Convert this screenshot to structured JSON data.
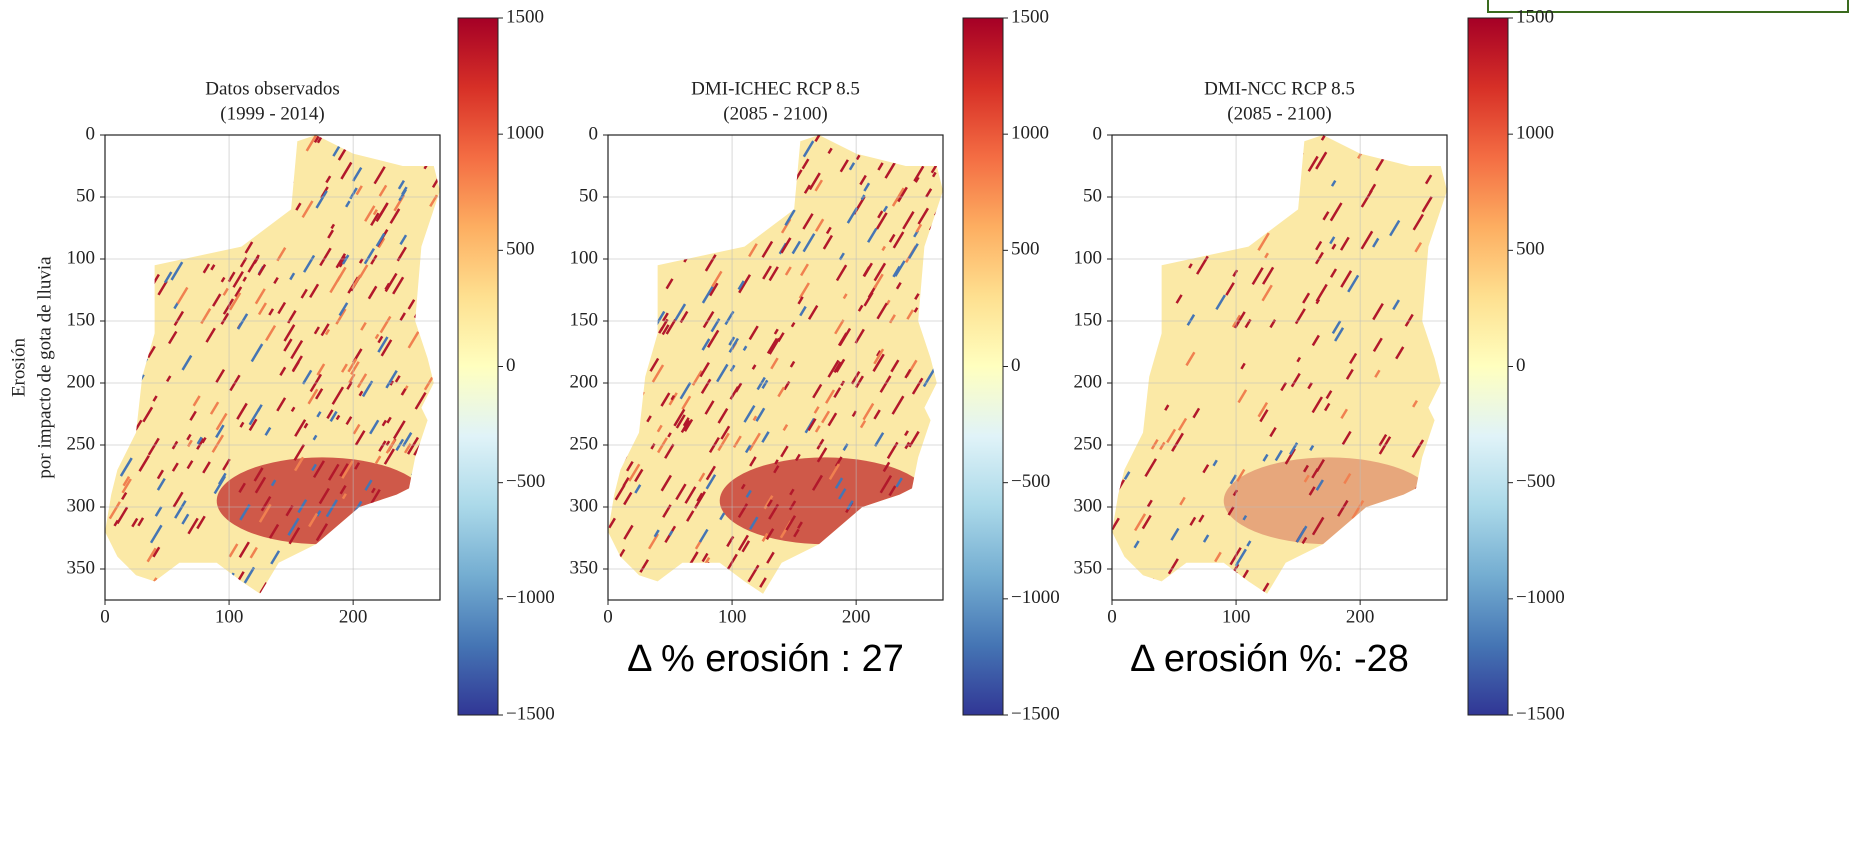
{
  "chart_data": [
    {
      "type": "heatmap",
      "title": "Datos observados",
      "subtitle": "(1999 - 2014)",
      "ylabel": [
        "Erosión",
        "por impacto de gota de lluvia"
      ],
      "xlim": [
        0,
        270
      ],
      "ylim": [
        375,
        0
      ],
      "xticks": [
        0,
        100,
        200
      ],
      "yticks": [
        0,
        50,
        100,
        150,
        200,
        250,
        300,
        350
      ],
      "grid": true,
      "colorbar": {
        "lim": [
          -1500,
          1500
        ],
        "ticks": [
          1500,
          1000,
          500,
          0,
          {
            "value": -500,
            "label": "−500"
          },
          {
            "value": -1000,
            "label": "−1000"
          },
          {
            "value": -1500,
            "label": "−1500"
          }
        ]
      },
      "cmap_colors": [
        "#a50026",
        "#d73027",
        "#f46d43",
        "#fdae61",
        "#fee090",
        "#ffffbf",
        "#e0f3f8",
        "#abd9e9",
        "#74add1",
        "#4575b4",
        "#313695"
      ]
    },
    {
      "type": "heatmap",
      "title": "DMI-ICHEC RCP 8.5",
      "subtitle": "(2085 - 2100)",
      "xlim": [
        0,
        270
      ],
      "ylim": [
        375,
        0
      ],
      "xticks": [
        0,
        100,
        200
      ],
      "yticks": [
        0,
        50,
        100,
        150,
        200,
        250,
        300,
        350
      ],
      "grid": true,
      "colorbar": {
        "lim": [
          -1500,
          1500
        ],
        "ticks": [
          1500,
          1000,
          500,
          0,
          {
            "value": -500,
            "label": "−500"
          },
          {
            "value": -1000,
            "label": "−1000"
          },
          {
            "value": -1500,
            "label": "−1500"
          }
        ]
      },
      "cmap_colors": [
        "#a50026",
        "#d73027",
        "#f46d43",
        "#fdae61",
        "#fee090",
        "#ffffbf",
        "#e0f3f8",
        "#abd9e9",
        "#74add1",
        "#4575b4",
        "#313695"
      ],
      "annotation": "Δ % erosión : 27"
    },
    {
      "type": "heatmap",
      "title": "DMI-NCC RCP 8.5",
      "subtitle": "(2085 - 2100)",
      "xlim": [
        0,
        270
      ],
      "ylim": [
        375,
        0
      ],
      "xticks": [
        0,
        100,
        200
      ],
      "yticks": [
        0,
        50,
        100,
        150,
        200,
        250,
        300,
        350
      ],
      "grid": true,
      "colorbar": {
        "lim": [
          -1500,
          1500
        ],
        "ticks": [
          1500,
          1000,
          500,
          0,
          {
            "value": -500,
            "label": "−500"
          },
          {
            "value": -1000,
            "label": "−1000"
          },
          {
            "value": -1500,
            "label": "−1500"
          }
        ]
      },
      "cmap_colors": [
        "#a50026",
        "#d73027",
        "#f46d43",
        "#fdae61",
        "#fee090",
        "#ffffbf",
        "#e0f3f8",
        "#abd9e9",
        "#74add1",
        "#4575b4",
        "#313695"
      ],
      "annotation": "Δ erosión %: -28"
    }
  ]
}
